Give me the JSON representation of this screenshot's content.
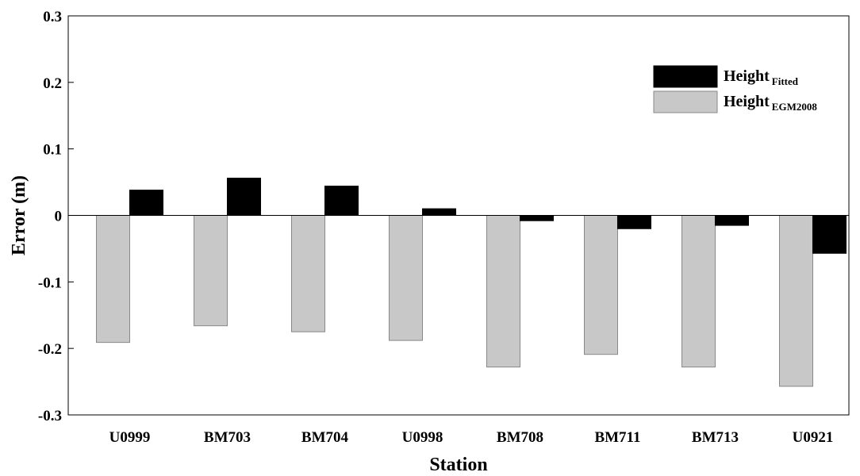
{
  "chart_data": {
    "type": "bar",
    "categories": [
      "U0999",
      "BM703",
      "BM704",
      "U0998",
      "BM708",
      "BM711",
      "BM713",
      "U0921"
    ],
    "series": [
      {
        "name": "Height",
        "name_sub": "EGM2008",
        "color": "#c8c8c8",
        "values": [
          -0.191,
          -0.166,
          -0.175,
          -0.188,
          -0.228,
          -0.209,
          -0.228,
          -0.257
        ]
      },
      {
        "name": "Height",
        "name_sub": "Fitted",
        "color": "#000000",
        "values": [
          0.038,
          0.056,
          0.044,
          0.01,
          -0.008,
          -0.02,
          -0.015,
          -0.057
        ]
      }
    ],
    "xlabel": "Station",
    "ylabel": "Error (m)",
    "ylim": [
      -0.3,
      0.3
    ],
    "yticks": [
      -0.3,
      -0.2,
      -0.1,
      0,
      0.1,
      0.2,
      0.3
    ],
    "ytick_labels": [
      "-0.3",
      "-0.2",
      "-0.1",
      "0",
      "0.1",
      "0.2",
      "0.3"
    ],
    "legend_order": [
      1,
      0
    ],
    "legend_position": "top-right",
    "grid": false
  }
}
